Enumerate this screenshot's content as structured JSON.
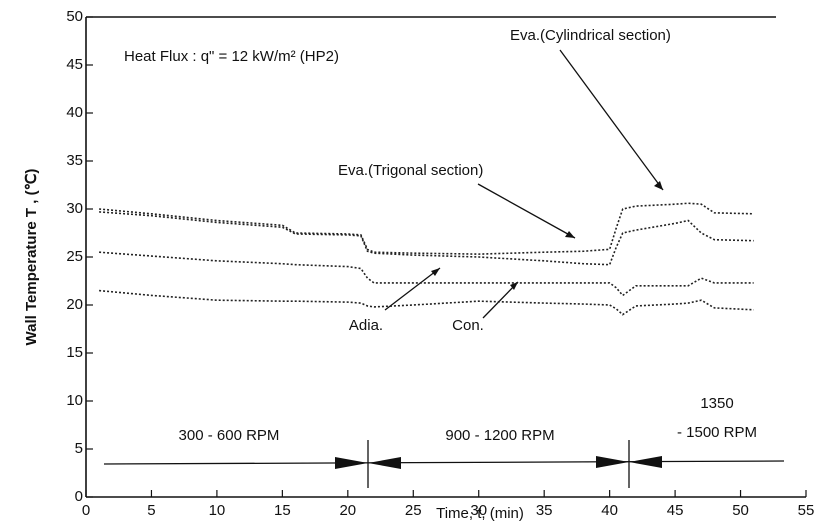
{
  "chart_data": {
    "type": "line",
    "xlabel": "Time,  t,  (min)",
    "ylabel": "Wall Temperature  T , (℃)",
    "x": [
      1,
      5,
      10,
      15,
      16,
      20,
      21,
      21.5,
      22,
      25,
      30,
      35,
      38,
      40,
      40.5,
      41,
      42,
      45,
      46,
      47,
      48,
      51
    ],
    "series": [
      {
        "name": "Eva.(Cylindrical section)",
        "color": "#222222",
        "values": [
          30,
          29.5,
          28.8,
          28.3,
          27.5,
          27.4,
          27.3,
          25.8,
          25.5,
          25.4,
          25.3,
          25.5,
          25.6,
          25.8,
          28,
          30,
          30.3,
          30.5,
          30.6,
          30.5,
          29.6,
          29.5
        ]
      },
      {
        "name": "Eva.(Trigonal section)",
        "color": "#222222",
        "values": [
          29.7,
          29.3,
          28.6,
          28.1,
          27.4,
          27.3,
          27.2,
          25.6,
          25.4,
          25.2,
          25,
          24.6,
          24.3,
          24.2,
          26,
          27.5,
          27.8,
          28.5,
          28.8,
          27.5,
          26.8,
          26.7
        ]
      },
      {
        "name": "Adia.",
        "color": "#222222",
        "values": [
          25.5,
          25.1,
          24.6,
          24.3,
          24.2,
          24.0,
          23.8,
          22.8,
          22.3,
          22.3,
          22.3,
          22.3,
          22.3,
          22.3,
          21.8,
          21.0,
          22.0,
          22.0,
          22.0,
          22.8,
          22.3,
          22.3
        ]
      },
      {
        "name": "Con.",
        "color": "#222222",
        "values": [
          21.5,
          21.0,
          20.5,
          20.4,
          20.4,
          20.3,
          20.2,
          19.9,
          19.8,
          20.0,
          20.4,
          20.2,
          20.1,
          20.0,
          19.6,
          19.0,
          19.9,
          20.1,
          20.2,
          20.5,
          19.7,
          19.5
        ]
      }
    ],
    "xlim": [
      0,
      55
    ],
    "xticks": [
      0,
      5,
      10,
      15,
      20,
      25,
      30,
      35,
      40,
      45,
      50,
      55
    ],
    "ylim": [
      0,
      50
    ],
    "yticks": [
      0,
      5,
      10,
      15,
      20,
      25,
      30,
      35,
      40,
      45,
      50
    ],
    "annotations": [
      "Heat Flux : q\" = 12 kW/m² (HP2)",
      "300 - 600 RPM",
      "900 - 1200 RPM",
      "1350",
      "- 1500 RPM"
    ]
  }
}
